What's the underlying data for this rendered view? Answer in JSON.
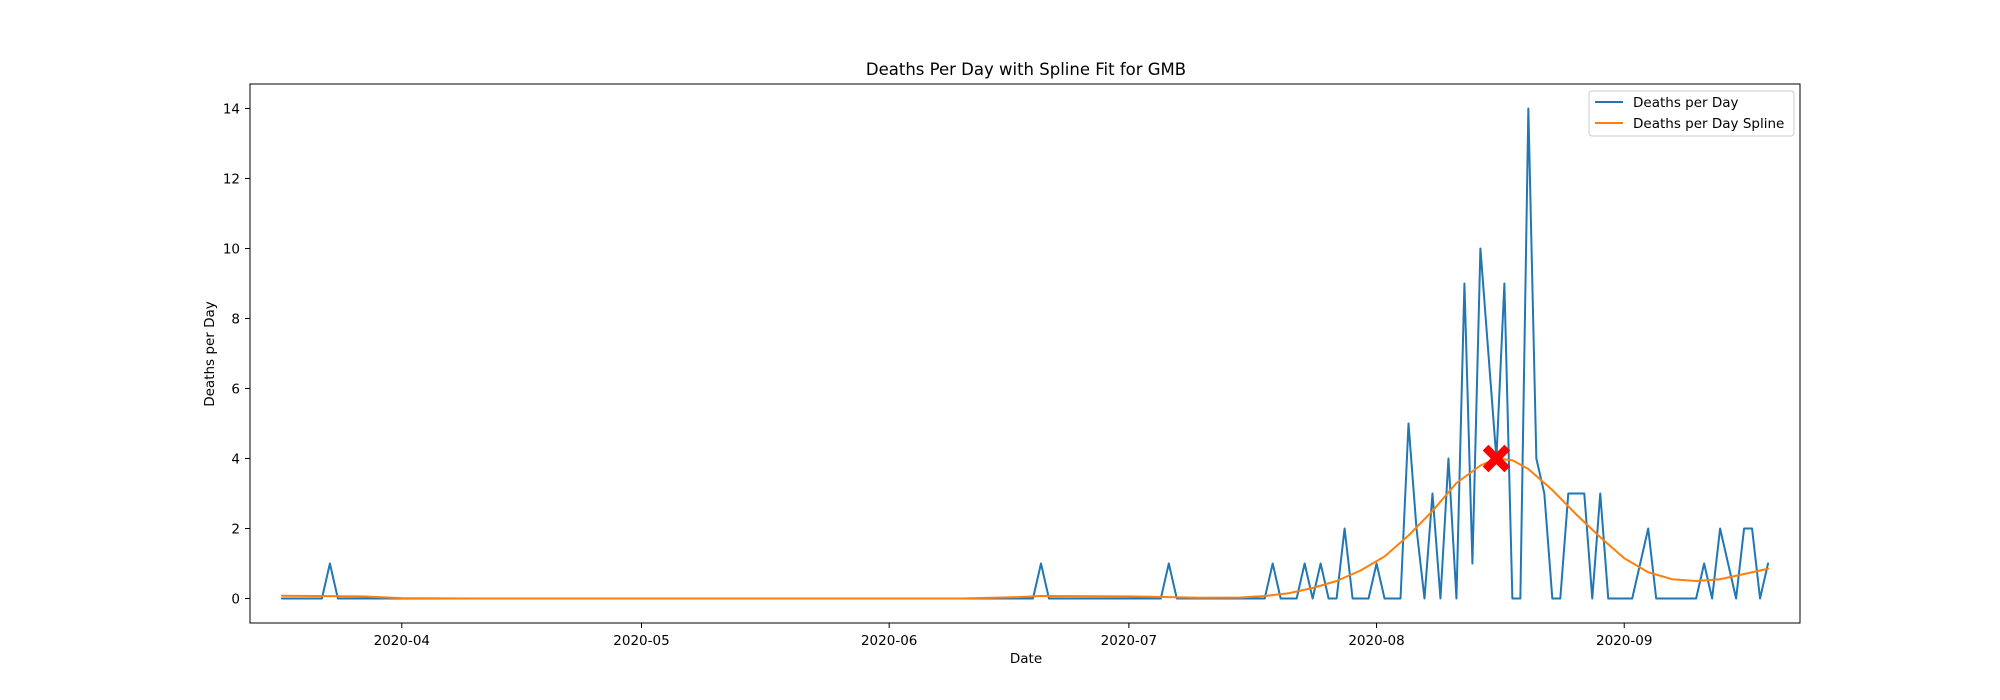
{
  "chart_data": {
    "type": "line",
    "title": "Deaths Per Day with Spline Fit for GMB",
    "xlabel": "Date",
    "ylabel": "Deaths per Day",
    "x_axis_type": "date",
    "xlim": [
      "2020-03-13",
      "2020-09-23"
    ],
    "ylim": [
      -0.7,
      14.7
    ],
    "x_ticks": [
      "2020-04-01",
      "2020-05-01",
      "2020-06-01",
      "2020-07-01",
      "2020-08-01",
      "2020-09-01"
    ],
    "x_tick_labels": [
      "2020-04",
      "2020-05",
      "2020-06",
      "2020-07",
      "2020-08",
      "2020-09"
    ],
    "y_ticks": [
      0,
      2,
      4,
      6,
      8,
      10,
      12,
      14
    ],
    "y_tick_labels": [
      "0",
      "2",
      "4",
      "6",
      "8",
      "10",
      "12",
      "14"
    ],
    "grid": false,
    "legend_position": "top-right",
    "series": [
      {
        "name": "Deaths per Day",
        "color": "#1f77b4",
        "points": [
          [
            "2020-03-17",
            0
          ],
          [
            "2020-03-22",
            0
          ],
          [
            "2020-03-23",
            1
          ],
          [
            "2020-03-24",
            0
          ],
          [
            "2020-06-19",
            0
          ],
          [
            "2020-06-20",
            1
          ],
          [
            "2020-06-21",
            0
          ],
          [
            "2020-07-05",
            0
          ],
          [
            "2020-07-06",
            1
          ],
          [
            "2020-07-07",
            0
          ],
          [
            "2020-07-18",
            0
          ],
          [
            "2020-07-19",
            1
          ],
          [
            "2020-07-20",
            0
          ],
          [
            "2020-07-22",
            0
          ],
          [
            "2020-07-23",
            1
          ],
          [
            "2020-07-24",
            0
          ],
          [
            "2020-07-25",
            1
          ],
          [
            "2020-07-26",
            0
          ],
          [
            "2020-07-27",
            0
          ],
          [
            "2020-07-28",
            2
          ],
          [
            "2020-07-29",
            0
          ],
          [
            "2020-07-31",
            0
          ],
          [
            "2020-08-01",
            1
          ],
          [
            "2020-08-02",
            0
          ],
          [
            "2020-08-04",
            0
          ],
          [
            "2020-08-05",
            5
          ],
          [
            "2020-08-06",
            2
          ],
          [
            "2020-08-07",
            0
          ],
          [
            "2020-08-08",
            3
          ],
          [
            "2020-08-09",
            0
          ],
          [
            "2020-08-10",
            4
          ],
          [
            "2020-08-11",
            0
          ],
          [
            "2020-08-12",
            9
          ],
          [
            "2020-08-13",
            1
          ],
          [
            "2020-08-14",
            10
          ],
          [
            "2020-08-15",
            7
          ],
          [
            "2020-08-16",
            4
          ],
          [
            "2020-08-17",
            9
          ],
          [
            "2020-08-18",
            0
          ],
          [
            "2020-08-19",
            0
          ],
          [
            "2020-08-20",
            14
          ],
          [
            "2020-08-21",
            4
          ],
          [
            "2020-08-22",
            3
          ],
          [
            "2020-08-23",
            0
          ],
          [
            "2020-08-24",
            0
          ],
          [
            "2020-08-25",
            3
          ],
          [
            "2020-08-26",
            3
          ],
          [
            "2020-08-27",
            3
          ],
          [
            "2020-08-28",
            0
          ],
          [
            "2020-08-29",
            3
          ],
          [
            "2020-08-30",
            0
          ],
          [
            "2020-09-02",
            0
          ],
          [
            "2020-09-04",
            2
          ],
          [
            "2020-09-05",
            0
          ],
          [
            "2020-09-10",
            0
          ],
          [
            "2020-09-11",
            1
          ],
          [
            "2020-09-12",
            0
          ],
          [
            "2020-09-13",
            2
          ],
          [
            "2020-09-15",
            0
          ],
          [
            "2020-09-16",
            2
          ],
          [
            "2020-09-17",
            2
          ],
          [
            "2020-09-18",
            0
          ],
          [
            "2020-09-19",
            1
          ]
        ]
      },
      {
        "name": "Deaths per Day Spline",
        "color": "#ff7f0e",
        "points": [
          [
            "2020-03-17",
            0.08
          ],
          [
            "2020-03-27",
            0.06
          ],
          [
            "2020-04-01",
            0.01
          ],
          [
            "2020-04-10",
            0.0
          ],
          [
            "2020-05-15",
            0.0
          ],
          [
            "2020-06-10",
            0.0
          ],
          [
            "2020-06-17",
            0.04
          ],
          [
            "2020-06-20",
            0.07
          ],
          [
            "2020-07-01",
            0.06
          ],
          [
            "2020-07-06",
            0.04
          ],
          [
            "2020-07-10",
            0.02
          ],
          [
            "2020-07-15",
            0.03
          ],
          [
            "2020-07-18",
            0.07
          ],
          [
            "2020-07-21",
            0.15
          ],
          [
            "2020-07-24",
            0.3
          ],
          [
            "2020-07-27",
            0.5
          ],
          [
            "2020-07-30",
            0.8
          ],
          [
            "2020-08-02",
            1.2
          ],
          [
            "2020-08-05",
            1.8
          ],
          [
            "2020-08-08",
            2.5
          ],
          [
            "2020-08-11",
            3.3
          ],
          [
            "2020-08-14",
            3.8
          ],
          [
            "2020-08-16",
            4.0
          ],
          [
            "2020-08-18",
            3.95
          ],
          [
            "2020-08-20",
            3.7
          ],
          [
            "2020-08-23",
            3.1
          ],
          [
            "2020-08-26",
            2.4
          ],
          [
            "2020-08-29",
            1.75
          ],
          [
            "2020-09-01",
            1.15
          ],
          [
            "2020-09-04",
            0.75
          ],
          [
            "2020-09-07",
            0.55
          ],
          [
            "2020-09-10",
            0.5
          ],
          [
            "2020-09-13",
            0.55
          ],
          [
            "2020-09-16",
            0.7
          ],
          [
            "2020-09-19",
            0.85
          ]
        ]
      }
    ],
    "annotations": [
      {
        "type": "marker",
        "marker": "X",
        "x": "2020-08-16",
        "y": 4.0,
        "color": "#ff0000"
      }
    ]
  }
}
